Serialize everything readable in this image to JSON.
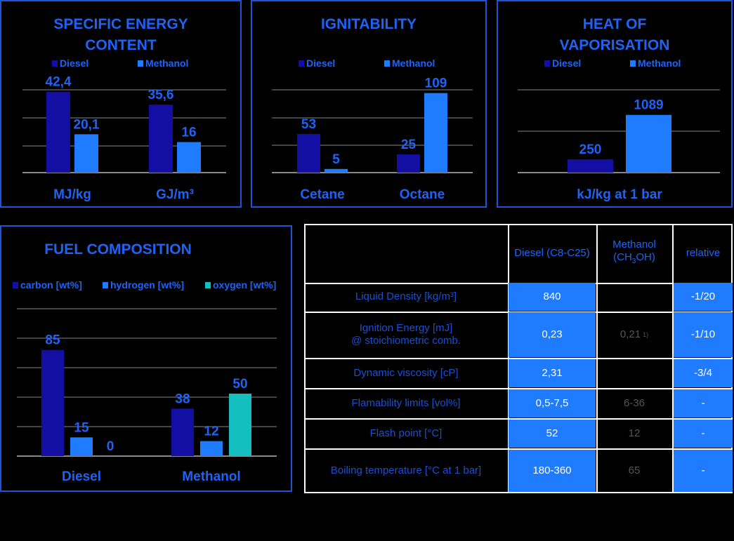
{
  "colors": {
    "diesel": "#140fa3",
    "methanol": "#1f7bff",
    "oxygen": "#13bfbf",
    "title": "#1f63f5",
    "frame": "#1a56d6",
    "gridline": "#ffffff"
  },
  "chart_data": [
    {
      "type": "bar",
      "title": "SPECIFIC ENERGY CONTENT",
      "categories": [
        "MJ/kg",
        "GJ/m³"
      ],
      "series": [
        {
          "name": "Diesel",
          "values": [
            42.4,
            35.6
          ],
          "labels": [
            "42,4",
            "35,6"
          ]
        },
        {
          "name": "Methanol",
          "values": [
            20.1,
            16
          ],
          "labels": [
            "20,1",
            "16"
          ]
        }
      ],
      "ylim": [
        0,
        50
      ],
      "grid": true,
      "legend": "top"
    },
    {
      "type": "bar",
      "title": "IGNITABILITY",
      "categories": [
        "Cetane",
        "Octane"
      ],
      "series": [
        {
          "name": "Diesel",
          "values": [
            53,
            25
          ],
          "labels": [
            "53",
            "25"
          ]
        },
        {
          "name": "Methanol",
          "values": [
            5,
            109
          ],
          "labels": [
            "5",
            "109"
          ]
        }
      ],
      "ylim": [
        0,
        150
      ],
      "grid": true,
      "legend": "top"
    },
    {
      "type": "bar",
      "title": "HEAT OF VAPORISATION",
      "categories": [
        "kJ/kg at 1 bar"
      ],
      "series": [
        {
          "name": "Diesel",
          "values": [
            250
          ],
          "labels": [
            "250"
          ]
        },
        {
          "name": "Methanol",
          "values": [
            1089
          ],
          "labels": [
            "1089"
          ]
        }
      ],
      "ylim": [
        0,
        1800
      ],
      "grid": true,
      "legend": "top"
    },
    {
      "type": "bar",
      "title": "FUEL COMPOSITION",
      "categories": [
        "Diesel",
        "Methanol"
      ],
      "series": [
        {
          "name": "carbon [wt%]",
          "values": [
            85,
            38
          ],
          "labels": [
            "85",
            "38"
          ]
        },
        {
          "name": "hydrogen [wt%]",
          "values": [
            15,
            12
          ],
          "labels": [
            "15",
            "12"
          ]
        },
        {
          "name": "oxygen [wt%]",
          "values": [
            0,
            50
          ],
          "labels": [
            "0",
            "50"
          ]
        }
      ],
      "ylim": [
        0,
        100
      ],
      "grid": true,
      "legend": "top"
    }
  ],
  "table": {
    "headers": [
      "Diesel (C8-C25)",
      "Methanol",
      "(CH",
      "3",
      "OH)",
      "relative"
    ],
    "rows": [
      {
        "label": "Liquid Density [kg/m³]",
        "diesel": "840",
        "methanol": "",
        "relative": "-1/20"
      },
      {
        "label": "Ignition Energy [mJ]",
        "label2": "@ stoichiometric comb.",
        "diesel": "0,23",
        "methanol": "0,21",
        "methanol_note": "1)",
        "relative": "-1/10"
      },
      {
        "label": "Dynamic viscosity [cP]",
        "diesel": "2,31",
        "methanol": "",
        "relative": "-3/4"
      },
      {
        "label": "Flamability limits [vol%]",
        "diesel": "0,5-7,5",
        "methanol": "6-36",
        "relative": "-"
      },
      {
        "label": "Flash point [°C]",
        "diesel": "52",
        "methanol": "12",
        "relative": "-"
      },
      {
        "label": "Boiling temperature [°C at 1 bar]",
        "diesel": "180-360",
        "methanol": "65",
        "relative": "-"
      }
    ]
  }
}
